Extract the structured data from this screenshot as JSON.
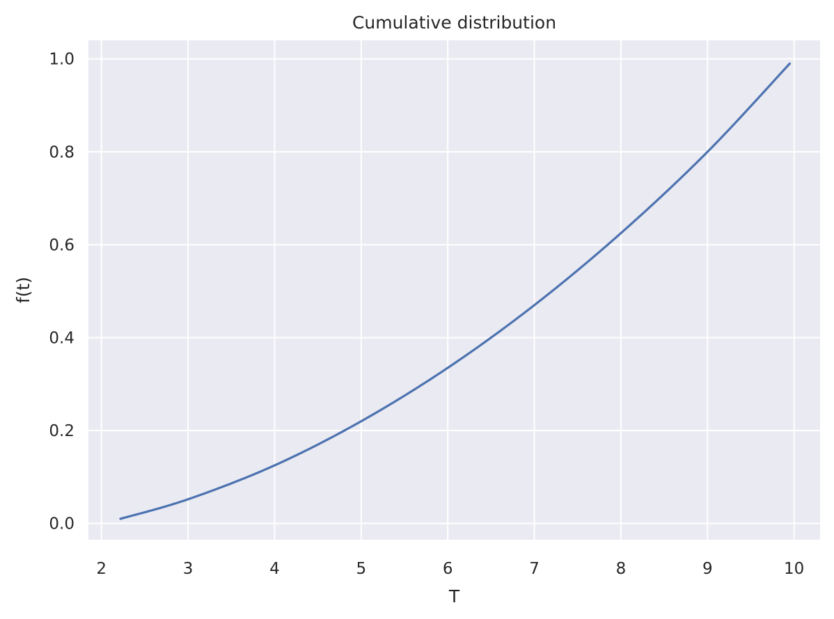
{
  "chart_data": {
    "type": "line",
    "title": "Cumulative distribution",
    "xlabel": "T",
    "ylabel": "f(t)",
    "xlim": [
      1.85,
      10.3
    ],
    "ylim": [
      -0.035,
      1.04
    ],
    "xticks": [
      2,
      3,
      4,
      5,
      6,
      7,
      8,
      9,
      10
    ],
    "xtick_labels": [
      "2",
      "3",
      "4",
      "5",
      "6",
      "7",
      "8",
      "9",
      "10"
    ],
    "yticks": [
      0.0,
      0.2,
      0.4,
      0.6,
      0.8,
      1.0
    ],
    "ytick_labels": [
      "0.0",
      "0.2",
      "0.4",
      "0.6",
      "0.8",
      "1.0"
    ],
    "grid": true,
    "background_color": "#EAEAF2",
    "grid_color": "#FFFFFF",
    "series": [
      {
        "color": "#4C72B0",
        "x": [
          2.22,
          3.0,
          4.0,
          5.0,
          6.0,
          7.0,
          8.0,
          9.0,
          9.95
        ],
        "y": [
          0.01,
          0.052,
          0.125,
          0.22,
          0.335,
          0.47,
          0.625,
          0.8,
          0.99
        ]
      }
    ]
  }
}
